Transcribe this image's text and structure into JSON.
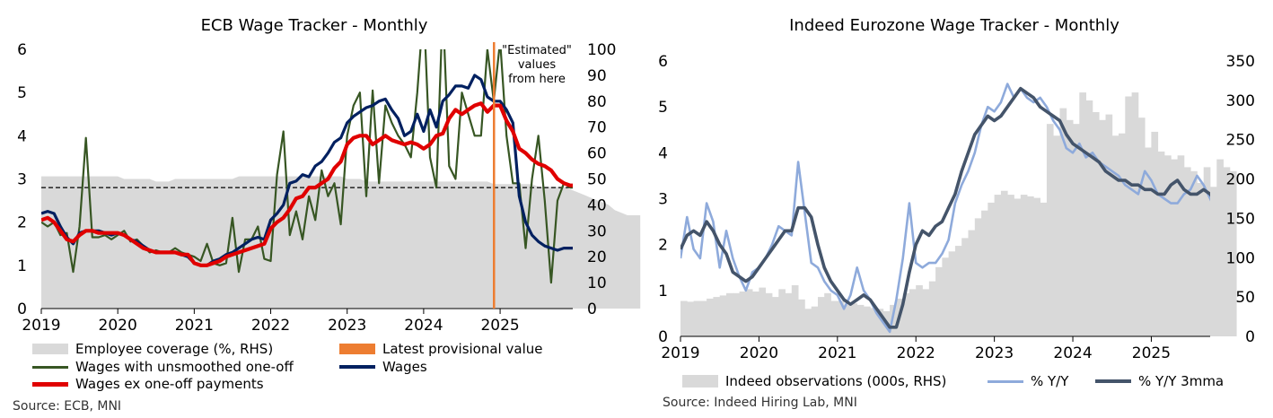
{
  "colors": {
    "coverage_fill": "#d9d9d9",
    "unsmoothed": "#375623",
    "wages": "#002060",
    "ex_oneoff": "#e00000",
    "provisional": "#ed7d31",
    "indeed_bars": "#d9d9d9",
    "yoy": "#8eaadb",
    "yoy3mma": "#44546a"
  },
  "chart_data": [
    {
      "type": "line",
      "title": "ECB Wage Tracker - Monthly",
      "x_ticks": [
        "2019",
        "2020",
        "2021",
        "2022",
        "2023",
        "2024",
        "2025"
      ],
      "x_range": [
        2019.0,
        2025.95
      ],
      "y_left": {
        "range": [
          0,
          6
        ],
        "ticks": [
          "0",
          "1",
          "2",
          "3",
          "4",
          "5",
          "6"
        ]
      },
      "y_right": {
        "range": [
          0,
          100
        ],
        "ticks": [
          "0",
          "10",
          "20",
          "30",
          "40",
          "50",
          "60",
          "70",
          "80",
          "90",
          "100"
        ]
      },
      "reference_line": {
        "y": 2.8,
        "style": "dashed"
      },
      "provisional_x": 2024.92,
      "annotation": [
        "\"Estimated\"",
        "values",
        "from here"
      ],
      "series": [
        {
          "name": "Employee coverage (%, RHS)",
          "axis": "right",
          "kind": "area",
          "x_start": 2019.0,
          "x_step": 0.0833333,
          "values": [
            51,
            51,
            51,
            51,
            51,
            51,
            51,
            51,
            51,
            51,
            51,
            51,
            51,
            50,
            50,
            50,
            50,
            50,
            49,
            49,
            49,
            50,
            50,
            50,
            50,
            50,
            50,
            50,
            50,
            50,
            50,
            51,
            51,
            51,
            51,
            51,
            51,
            51,
            51,
            51,
            51,
            51,
            51,
            51,
            51,
            51,
            51,
            51,
            50,
            50,
            50,
            49,
            49,
            49,
            49,
            49,
            49,
            49,
            49,
            49,
            49,
            49,
            49,
            49,
            49,
            49,
            49,
            49,
            49,
            49,
            49,
            48,
            48,
            48,
            48,
            48,
            48,
            48,
            47,
            47,
            47,
            47,
            47,
            46,
            45,
            44,
            43,
            42,
            41,
            40,
            38,
            37,
            36,
            36,
            36
          ]
        },
        {
          "name": "Wages with unsmoothed one-off",
          "axis": "left",
          "x_start": 2019.0,
          "x_step": 0.0833333,
          "values": [
            2.0,
            1.9,
            2.0,
            1.7,
            1.75,
            0.85,
            1.9,
            3.95,
            1.65,
            1.65,
            1.7,
            1.6,
            1.7,
            1.8,
            1.55,
            1.6,
            1.45,
            1.3,
            1.35,
            1.3,
            1.3,
            1.4,
            1.3,
            1.25,
            1.2,
            1.1,
            1.5,
            1.05,
            1.0,
            1.05,
            2.1,
            0.85,
            1.6,
            1.6,
            1.9,
            1.15,
            1.1,
            3.1,
            4.1,
            1.7,
            2.25,
            1.6,
            2.6,
            2.05,
            3.2,
            2.6,
            2.9,
            1.95,
            4.0,
            4.7,
            5.0,
            2.6,
            5.05,
            2.9,
            4.7,
            4.3,
            4.0,
            3.8,
            3.5,
            5.0,
            7.0,
            3.5,
            2.8,
            7.0,
            3.3,
            3.0,
            5.0,
            4.5,
            4.0,
            4.0,
            6.0,
            4.8,
            6.2,
            4.0,
            2.9,
            2.9,
            1.4,
            3.0,
            4.0,
            2.5,
            0.6,
            2.5,
            2.9,
            2.8,
            2.8
          ]
        },
        {
          "name": "Wages",
          "axis": "left",
          "x_start": 2019.0,
          "x_step": 0.0833333,
          "values": [
            2.2,
            2.25,
            2.2,
            1.9,
            1.65,
            1.5,
            1.75,
            1.8,
            1.8,
            1.8,
            1.75,
            1.7,
            1.75,
            1.7,
            1.6,
            1.55,
            1.45,
            1.35,
            1.3,
            1.3,
            1.3,
            1.3,
            1.25,
            1.2,
            1.05,
            1.0,
            1.0,
            1.1,
            1.15,
            1.25,
            1.3,
            1.4,
            1.5,
            1.6,
            1.65,
            1.6,
            2.05,
            2.2,
            2.4,
            2.9,
            2.95,
            3.1,
            3.05,
            3.3,
            3.4,
            3.6,
            3.85,
            3.95,
            4.3,
            4.45,
            4.55,
            4.65,
            4.7,
            4.8,
            4.85,
            4.6,
            4.4,
            4.0,
            4.1,
            4.5,
            4.1,
            4.6,
            4.2,
            4.8,
            4.95,
            5.15,
            5.15,
            5.1,
            5.4,
            5.3,
            4.9,
            4.8,
            4.8,
            4.6,
            4.3,
            2.6,
            2.0,
            1.7,
            1.55,
            1.45,
            1.4,
            1.35,
            1.4,
            1.4,
            1.4
          ]
        },
        {
          "name": "Wages ex one-off payments",
          "axis": "left",
          "x_start": 2019.0,
          "x_step": 0.0833333,
          "values": [
            2.05,
            2.1,
            2.0,
            1.8,
            1.6,
            1.55,
            1.7,
            1.8,
            1.8,
            1.75,
            1.75,
            1.75,
            1.75,
            1.7,
            1.6,
            1.5,
            1.4,
            1.35,
            1.3,
            1.3,
            1.3,
            1.3,
            1.25,
            1.25,
            1.05,
            1.0,
            1.0,
            1.05,
            1.1,
            1.2,
            1.25,
            1.3,
            1.35,
            1.4,
            1.45,
            1.5,
            1.85,
            2.0,
            2.1,
            2.3,
            2.55,
            2.6,
            2.8,
            2.8,
            2.9,
            3.0,
            3.25,
            3.4,
            3.8,
            3.95,
            4.0,
            4.0,
            3.8,
            3.9,
            4.0,
            3.9,
            3.85,
            3.8,
            3.85,
            3.8,
            3.7,
            3.8,
            4.0,
            4.05,
            4.4,
            4.6,
            4.5,
            4.6,
            4.7,
            4.75,
            4.55,
            4.7,
            4.7,
            4.35,
            4.1,
            3.7,
            3.6,
            3.45,
            3.35,
            3.3,
            3.2,
            3.0,
            2.9,
            2.85,
            2.85
          ]
        }
      ],
      "legend": [
        "Employee coverage (%, RHS)",
        "Latest provisional value",
        "Wages with unsmoothed one-off",
        "Wages",
        "Wages ex one-off payments"
      ],
      "source": "Source: ECB, MNI"
    },
    {
      "type": "line",
      "title": "Indeed Eurozone Wage Tracker - Monthly",
      "x_ticks": [
        "2019",
        "2020",
        "2021",
        "2022",
        "2023",
        "2024",
        "2025"
      ],
      "x_range": [
        2019.0,
        2025.75
      ],
      "y_left": {
        "range": [
          0,
          6
        ],
        "ticks": [
          "0",
          "1",
          "2",
          "3",
          "4",
          "5",
          "6"
        ]
      },
      "y_right": {
        "range": [
          0,
          350
        ],
        "ticks": [
          "0",
          "50",
          "100",
          "150",
          "200",
          "250",
          "300",
          "350"
        ]
      },
      "series": [
        {
          "name": "Indeed observations (000s, RHS)",
          "axis": "right",
          "kind": "bar",
          "x_start": 2019.0,
          "x_step": 0.0833333,
          "values": [
            45,
            44,
            45,
            45,
            48,
            50,
            52,
            55,
            55,
            57,
            60,
            57,
            62,
            55,
            50,
            60,
            55,
            65,
            47,
            35,
            38,
            50,
            55,
            45,
            45,
            40,
            42,
            40,
            38,
            36,
            35,
            32,
            40,
            48,
            55,
            60,
            65,
            60,
            70,
            88,
            100,
            108,
            115,
            125,
            135,
            150,
            160,
            170,
            180,
            185,
            180,
            175,
            180,
            178,
            176,
            170,
            270,
            255,
            290,
            275,
            270,
            310,
            300,
            285,
            275,
            282,
            255,
            258,
            305,
            310,
            278,
            240,
            260,
            235,
            230,
            225,
            230,
            215,
            210,
            195,
            215,
            190,
            225,
            215,
            210
          ]
        },
        {
          "name": "% Y/Y",
          "axis": "left",
          "x_start": 2019.0,
          "x_step": 0.0833333,
          "values": [
            1.7,
            2.6,
            1.9,
            1.7,
            2.9,
            2.5,
            1.5,
            2.3,
            1.7,
            1.3,
            1.0,
            1.4,
            1.5,
            1.7,
            2.0,
            2.4,
            2.3,
            2.2,
            3.8,
            2.7,
            1.6,
            1.5,
            1.2,
            1.0,
            0.9,
            0.6,
            0.9,
            1.5,
            1.0,
            0.8,
            0.5,
            0.3,
            0.1,
            0.8,
            1.7,
            2.9,
            1.6,
            1.5,
            1.6,
            1.6,
            1.8,
            2.1,
            2.9,
            3.3,
            3.6,
            4.0,
            4.6,
            5.0,
            4.9,
            5.1,
            5.5,
            5.2,
            5.4,
            5.2,
            5.1,
            5.2,
            5.0,
            4.7,
            4.5,
            4.1,
            4.0,
            4.2,
            3.9,
            4.0,
            3.8,
            3.7,
            3.6,
            3.5,
            3.3,
            3.2,
            3.1,
            3.6,
            3.4,
            3.1,
            3.0,
            2.9,
            2.9,
            3.1,
            3.2,
            3.5,
            3.3,
            3.0,
            2.7,
            2.5,
            2.4
          ]
        },
        {
          "name": "% Y/Y 3mma",
          "axis": "left",
          "x_start": 2019.0,
          "x_step": 0.0833333,
          "values": [
            1.9,
            2.2,
            2.3,
            2.2,
            2.5,
            2.3,
            2.0,
            1.8,
            1.4,
            1.3,
            1.2,
            1.3,
            1.5,
            1.7,
            1.9,
            2.1,
            2.3,
            2.3,
            2.8,
            2.8,
            2.6,
            2.0,
            1.5,
            1.2,
            1.0,
            0.8,
            0.7,
            0.8,
            0.9,
            0.8,
            0.6,
            0.4,
            0.2,
            0.2,
            0.7,
            1.4,
            2.0,
            2.3,
            2.2,
            2.4,
            2.5,
            2.8,
            3.1,
            3.6,
            4.0,
            4.4,
            4.6,
            4.8,
            4.7,
            4.8,
            5.0,
            5.2,
            5.4,
            5.3,
            5.2,
            5.0,
            4.9,
            4.8,
            4.7,
            4.4,
            4.2,
            4.1,
            4.0,
            3.9,
            3.8,
            3.6,
            3.5,
            3.4,
            3.4,
            3.3,
            3.3,
            3.2,
            3.2,
            3.1,
            3.1,
            3.3,
            3.4,
            3.2,
            3.1,
            3.1,
            3.2,
            3.1,
            2.9,
            2.7,
            2.4
          ]
        }
      ],
      "legend": [
        "Indeed observations (000s, RHS)",
        "% Y/Y",
        "% Y/Y 3mma"
      ],
      "source": "Source: Indeed Hiring Lab, MNI"
    }
  ]
}
